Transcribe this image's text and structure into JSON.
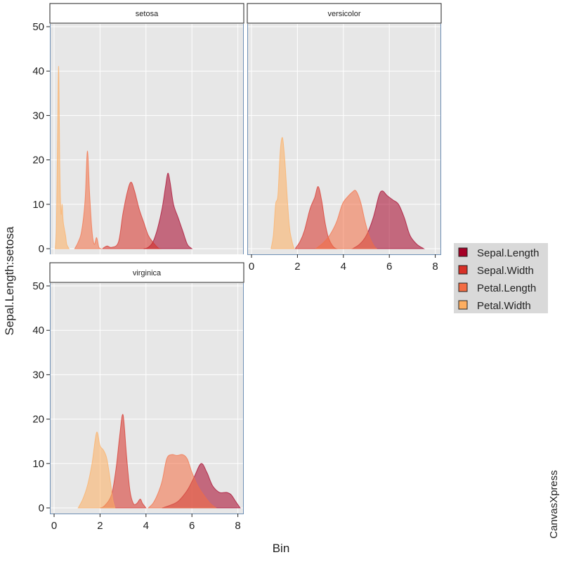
{
  "chart_data": {
    "type": "area",
    "subtype": "density",
    "facets": [
      "setosa",
      "versicolor",
      "virginica"
    ],
    "xlabel": "Bin",
    "ylabel": "Sepal.Length:setosa",
    "xlim": [
      0,
      8
    ],
    "ylim": [
      0,
      50
    ],
    "xticks": [
      0,
      2,
      4,
      6,
      8
    ],
    "yticks": [
      0,
      10,
      20,
      30,
      40,
      50
    ],
    "grid": true,
    "legend_position": "right",
    "credit": "CanvasXpress",
    "series": [
      {
        "name": "Sepal.Length",
        "color": "#a50026"
      },
      {
        "name": "Sepal.Width",
        "color": "#d73027"
      },
      {
        "name": "Petal.Length",
        "color": "#f46d43"
      },
      {
        "name": "Petal.Width",
        "color": "#fdae61"
      }
    ],
    "panels": {
      "setosa": {
        "Sepal.Length": [
          [
            3.9,
            0
          ],
          [
            4.1,
            0.3
          ],
          [
            4.3,
            1.5
          ],
          [
            4.5,
            4.5
          ],
          [
            4.7,
            9
          ],
          [
            4.85,
            14
          ],
          [
            4.95,
            17
          ],
          [
            5.05,
            15
          ],
          [
            5.2,
            10
          ],
          [
            5.4,
            7
          ],
          [
            5.6,
            4
          ],
          [
            5.8,
            1
          ],
          [
            6.0,
            0
          ]
        ],
        "Sepal.Width": [
          [
            2.1,
            0
          ],
          [
            2.3,
            0.6
          ],
          [
            2.5,
            0.3
          ],
          [
            2.8,
            1.5
          ],
          [
            3.0,
            8
          ],
          [
            3.2,
            13
          ],
          [
            3.35,
            15
          ],
          [
            3.5,
            13
          ],
          [
            3.7,
            9
          ],
          [
            3.9,
            6
          ],
          [
            4.1,
            3
          ],
          [
            4.3,
            1.5
          ],
          [
            4.5,
            0.3
          ],
          [
            4.6,
            0
          ]
        ],
        "Petal.Length": [
          [
            0.9,
            0
          ],
          [
            1.05,
            1.5
          ],
          [
            1.2,
            4
          ],
          [
            1.35,
            11
          ],
          [
            1.45,
            22
          ],
          [
            1.55,
            12
          ],
          [
            1.65,
            4
          ],
          [
            1.75,
            1
          ],
          [
            1.85,
            2.5
          ],
          [
            1.95,
            0.3
          ],
          [
            2.05,
            0
          ]
        ],
        "Petal.Width": [
          [
            0.05,
            0
          ],
          [
            0.1,
            5
          ],
          [
            0.15,
            25
          ],
          [
            0.2,
            41
          ],
          [
            0.25,
            18
          ],
          [
            0.3,
            8
          ],
          [
            0.35,
            10
          ],
          [
            0.4,
            6
          ],
          [
            0.5,
            3
          ],
          [
            0.55,
            1
          ],
          [
            0.65,
            0
          ]
        ]
      },
      "versicolor": {
        "Sepal.Length": [
          [
            4.4,
            0
          ],
          [
            4.7,
            1
          ],
          [
            5.0,
            3
          ],
          [
            5.3,
            7
          ],
          [
            5.55,
            12
          ],
          [
            5.7,
            13
          ],
          [
            5.9,
            12
          ],
          [
            6.15,
            11
          ],
          [
            6.4,
            10
          ],
          [
            6.65,
            7
          ],
          [
            6.9,
            3
          ],
          [
            7.2,
            1
          ],
          [
            7.5,
            0
          ]
        ],
        "Sepal.Width": [
          [
            1.9,
            0
          ],
          [
            2.1,
            1.5
          ],
          [
            2.3,
            4
          ],
          [
            2.55,
            9
          ],
          [
            2.75,
            11.5
          ],
          [
            2.9,
            14
          ],
          [
            3.05,
            11
          ],
          [
            3.2,
            6
          ],
          [
            3.35,
            2.5
          ],
          [
            3.55,
            0.5
          ],
          [
            3.7,
            0
          ]
        ],
        "Petal.Length": [
          [
            2.8,
            0
          ],
          [
            3.1,
            1.2
          ],
          [
            3.4,
            3
          ],
          [
            3.7,
            6
          ],
          [
            3.95,
            10
          ],
          [
            4.15,
            11.5
          ],
          [
            4.4,
            12.8
          ],
          [
            4.55,
            13
          ],
          [
            4.75,
            10.5
          ],
          [
            4.95,
            6
          ],
          [
            5.15,
            2.5
          ],
          [
            5.35,
            0.5
          ],
          [
            5.45,
            0
          ]
        ],
        "Petal.Width": [
          [
            0.85,
            0
          ],
          [
            0.95,
            3
          ],
          [
            1.05,
            10
          ],
          [
            1.15,
            12
          ],
          [
            1.25,
            22
          ],
          [
            1.35,
            25
          ],
          [
            1.45,
            20
          ],
          [
            1.55,
            12
          ],
          [
            1.65,
            5
          ],
          [
            1.75,
            2
          ],
          [
            1.85,
            0
          ]
        ]
      },
      "virginica": {
        "Sepal.Length": [
          [
            4.7,
            0
          ],
          [
            5.0,
            0.5
          ],
          [
            5.4,
            1.5
          ],
          [
            5.8,
            4
          ],
          [
            6.1,
            7
          ],
          [
            6.4,
            10
          ],
          [
            6.65,
            8
          ],
          [
            6.9,
            5
          ],
          [
            7.2,
            3.5
          ],
          [
            7.5,
            3.5
          ],
          [
            7.7,
            3
          ],
          [
            7.9,
            1.5
          ],
          [
            8.1,
            0
          ]
        ],
        "Sepal.Width": [
          [
            2.0,
            0
          ],
          [
            2.2,
            0.5
          ],
          [
            2.5,
            3
          ],
          [
            2.7,
            9
          ],
          [
            2.85,
            16
          ],
          [
            3.0,
            21
          ],
          [
            3.15,
            12
          ],
          [
            3.3,
            4
          ],
          [
            3.45,
            1
          ],
          [
            3.6,
            1
          ],
          [
            3.75,
            2
          ],
          [
            3.85,
            1
          ],
          [
            4.0,
            0
          ]
        ],
        "Petal.Length": [
          [
            4.1,
            0
          ],
          [
            4.3,
            1
          ],
          [
            4.5,
            3
          ],
          [
            4.7,
            6
          ],
          [
            4.9,
            11
          ],
          [
            5.1,
            12
          ],
          [
            5.35,
            11.8
          ],
          [
            5.6,
            12
          ],
          [
            5.8,
            11
          ],
          [
            6.0,
            8
          ],
          [
            6.25,
            5
          ],
          [
            6.5,
            3
          ],
          [
            6.8,
            1
          ],
          [
            7.05,
            0
          ]
        ],
        "Petal.Width": [
          [
            1.05,
            0
          ],
          [
            1.25,
            2
          ],
          [
            1.45,
            5
          ],
          [
            1.65,
            10
          ],
          [
            1.85,
            17
          ],
          [
            2.0,
            14
          ],
          [
            2.15,
            13
          ],
          [
            2.3,
            11
          ],
          [
            2.45,
            6
          ],
          [
            2.55,
            2
          ],
          [
            2.65,
            0
          ]
        ]
      }
    }
  }
}
